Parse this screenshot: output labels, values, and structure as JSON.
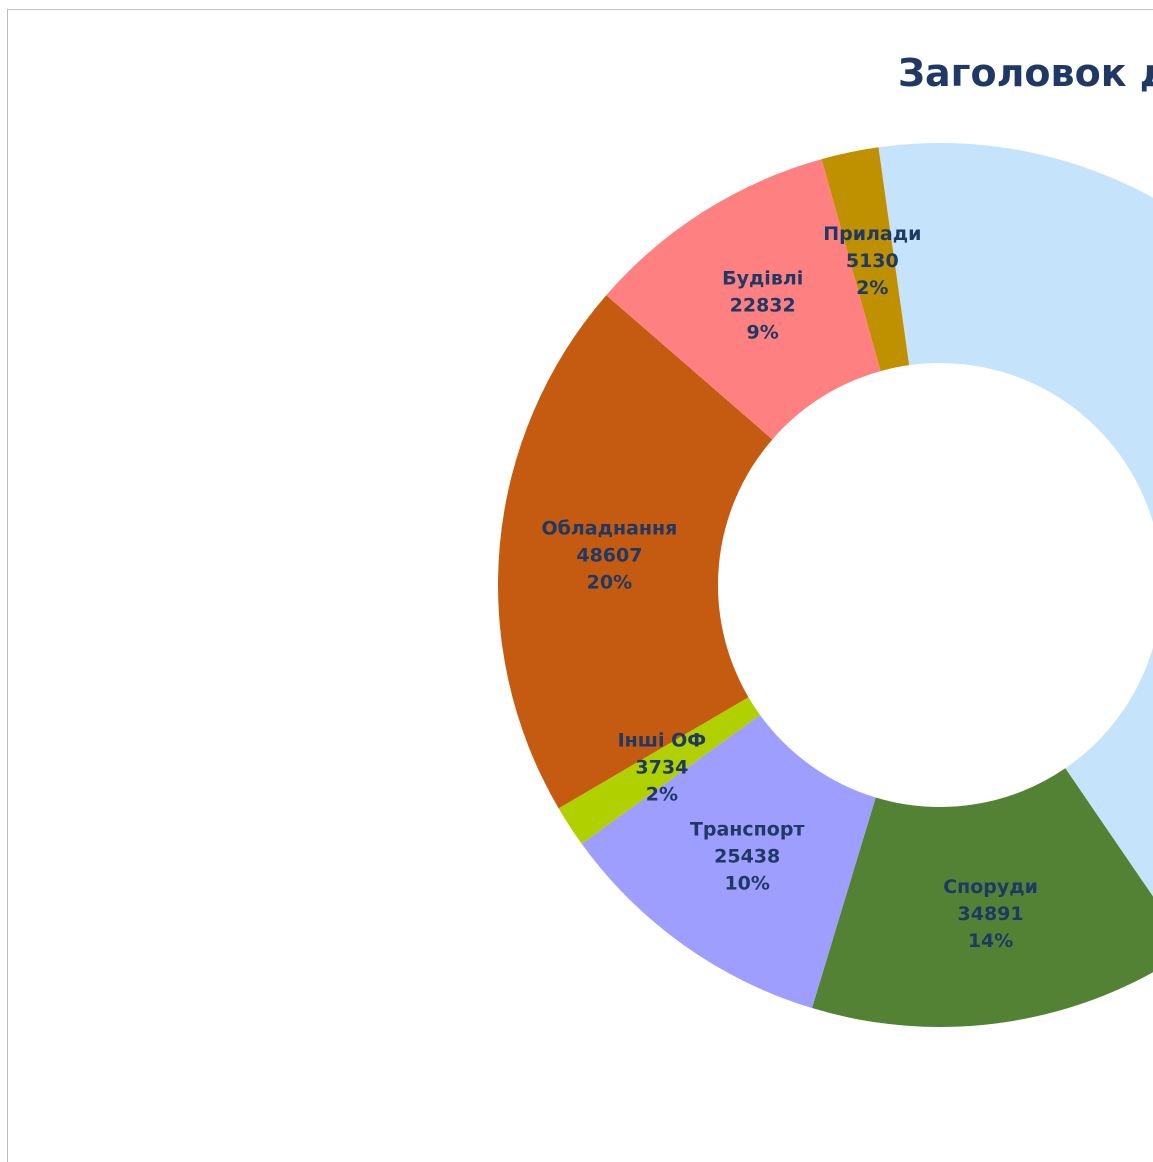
{
  "chart_data": {
    "type": "donut",
    "title": "Заголовок д",
    "categories": [
      null,
      "Споруди",
      "Транспорт",
      "Інші ОФ",
      "Обладнання",
      "Будівлі",
      "Прилади"
    ],
    "values": [
      104700,
      34891,
      25438,
      3734,
      48607,
      22832,
      5130
    ],
    "percent_labels": [
      null,
      "14%",
      "10%",
      "2%",
      "20%",
      "9%",
      "2%"
    ],
    "colors": [
      "#c5e3fb",
      "#548235",
      "#9e9eff",
      "#b0d000",
      "#c55a11",
      "#ff8080",
      "#bf9000"
    ]
  }
}
